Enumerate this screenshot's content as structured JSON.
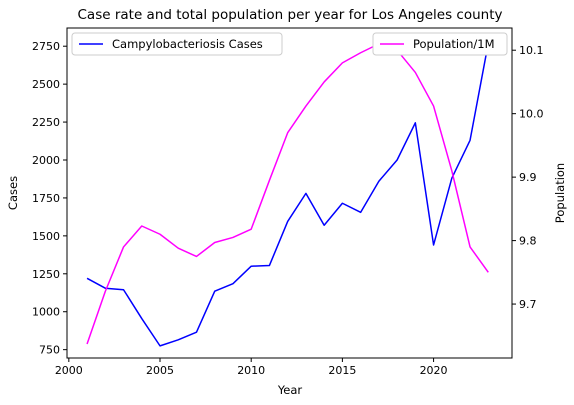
{
  "chart_data": {
    "type": "line",
    "title": "Case rate and total population per year for Los Angeles county",
    "xlabel": "Year",
    "ylabel_left": "Cases",
    "ylabel_right": "Population",
    "xlim": [
      1999.9,
      2024.3
    ],
    "ylim_left": [
      695,
      2870
    ],
    "ylim_right": [
      9.615,
      10.135
    ],
    "x_ticks": [
      2000,
      2005,
      2010,
      2015,
      2020
    ],
    "y_left_ticks": [
      750,
      1000,
      1250,
      1500,
      1750,
      2000,
      2250,
      2500,
      2750
    ],
    "y_right_ticks": [
      9.7,
      9.8,
      9.9,
      10.0,
      10.1
    ],
    "grid": false,
    "legend_left_position": "upper-left",
    "legend_right_position": "upper-right",
    "x": [
      2001,
      2002,
      2003,
      2004,
      2005,
      2006,
      2007,
      2008,
      2009,
      2010,
      2011,
      2012,
      2013,
      2014,
      2015,
      2016,
      2017,
      2018,
      2019,
      2020,
      2021,
      2022,
      2023
    ],
    "series": [
      {
        "name": "Campylobacteriosis Cases",
        "axis": "left",
        "color": "#0000ff",
        "values": [
          1220,
          1155,
          1145,
          955,
          775,
          815,
          865,
          1135,
          1185,
          1300,
          1305,
          1595,
          1780,
          1570,
          1715,
          1655,
          1860,
          2000,
          2245,
          1440,
          1880,
          2130,
          2770
        ]
      },
      {
        "name": "Population/1M",
        "axis": "right",
        "color": "#ff00ff",
        "values": [
          9.637,
          9.72,
          9.79,
          9.823,
          9.81,
          9.788,
          9.775,
          9.797,
          9.805,
          9.818,
          9.895,
          9.97,
          10.012,
          10.05,
          10.08,
          10.096,
          10.11,
          10.1,
          10.065,
          10.012,
          9.91,
          9.79,
          9.75
        ]
      }
    ]
  }
}
